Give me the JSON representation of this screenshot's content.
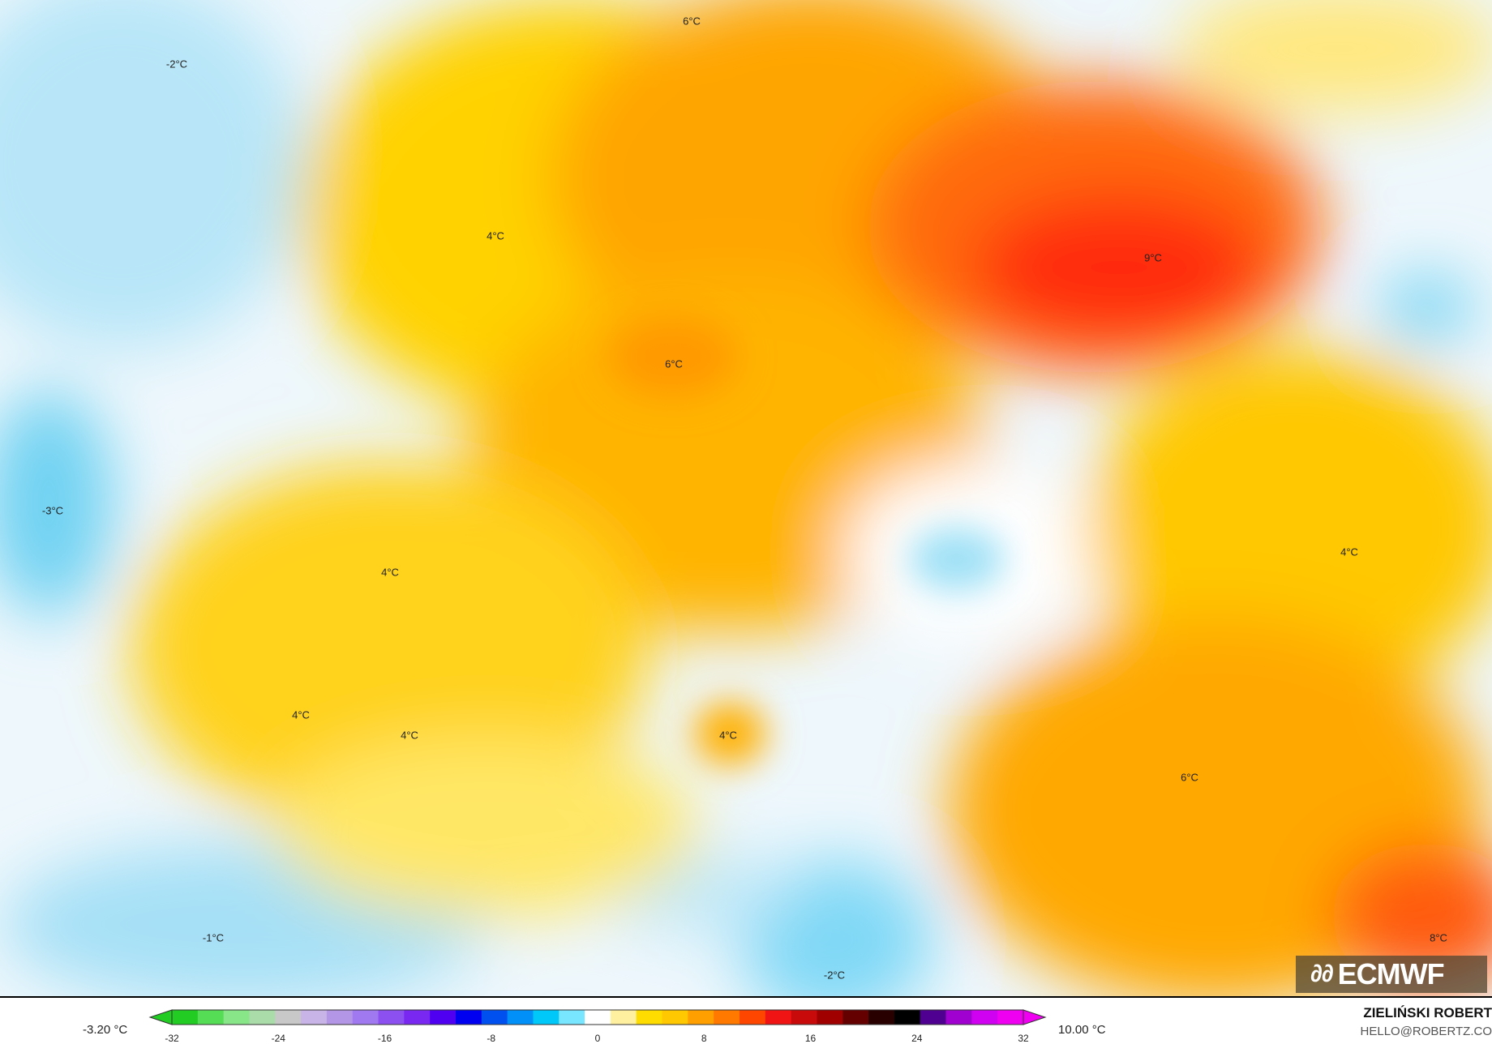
{
  "map": {
    "labels": [
      {
        "text": "-2°C"
      },
      {
        "text": "6°C"
      },
      {
        "text": "4°C"
      },
      {
        "text": "9°C"
      },
      {
        "text": "6°C"
      },
      {
        "text": "-3°C"
      },
      {
        "text": "4°C"
      },
      {
        "text": "4°C"
      },
      {
        "text": "4°C"
      },
      {
        "text": "4°C"
      },
      {
        "text": "4°C"
      },
      {
        "text": "6°C"
      },
      {
        "text": "-1°C"
      },
      {
        "text": "-2°C"
      },
      {
        "text": "8°C"
      }
    ]
  },
  "logo": {
    "text": "ECMWF",
    "icon": "ecmwf-logo-icon"
  },
  "colorbar": {
    "min_label": "-3.20 °C",
    "max_label": "10.00 °C",
    "ticks": [
      "-32",
      "-24",
      "-16",
      "-8",
      "0",
      "8",
      "16",
      "24",
      "32"
    ],
    "range": [
      -32,
      32
    ],
    "colors": [
      "#22cc22",
      "#55dd55",
      "#88e688",
      "#aadcaa",
      "#c8c8c8",
      "#c8b4e6",
      "#b496e6",
      "#a078f0",
      "#8c50f0",
      "#7828f0",
      "#5000f0",
      "#0000f0",
      "#0050f0",
      "#0090f8",
      "#00c8f8",
      "#78e6ff",
      "#ffffff",
      "#fff0a0",
      "#ffdc00",
      "#ffc800",
      "#ffa000",
      "#ff7800",
      "#ff4600",
      "#f01414",
      "#c80a0a",
      "#a00000",
      "#640000",
      "#280000",
      "#000000",
      "#500090",
      "#a000d0",
      "#d000f0",
      "#f000f0"
    ]
  },
  "credit": {
    "author": "ZIELIŃSKI ROBERT",
    "email": "HELLO@ROBERTZ.CO"
  }
}
